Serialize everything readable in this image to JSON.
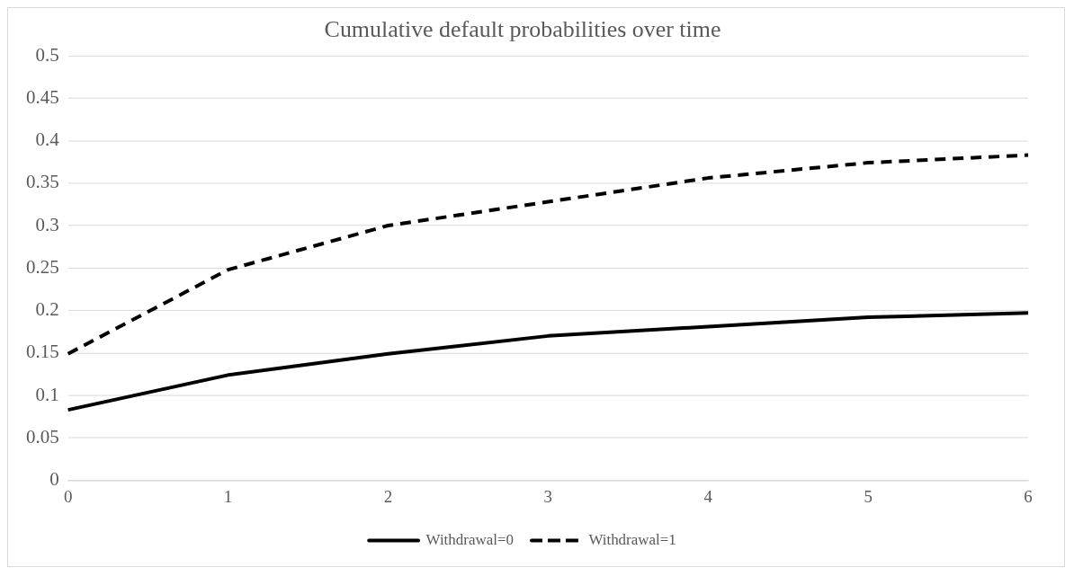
{
  "chart_data": {
    "type": "line",
    "title": "Cumulative default probabilities over time",
    "categories": [
      "0",
      "1",
      "2",
      "3",
      "4",
      "5",
      "6"
    ],
    "series": [
      {
        "name": "Withdrawal=0",
        "color": "#000000",
        "line_style": "solid",
        "values": [
          0.083,
          0.124,
          0.149,
          0.17,
          0.181,
          0.192,
          0.197
        ]
      },
      {
        "name": "Withdrawal=1",
        "color": "#000000",
        "line_style": "dashed",
        "values": [
          0.149,
          0.248,
          0.3,
          0.328,
          0.356,
          0.374,
          0.383
        ]
      }
    ],
    "ylim": [
      0,
      0.5
    ],
    "yticks": [
      0,
      0.05,
      0.1,
      0.15,
      0.2,
      0.25,
      0.3,
      0.35,
      0.4,
      0.45,
      0.5
    ],
    "grid": "y",
    "legend": "bottom",
    "marker": "none"
  }
}
